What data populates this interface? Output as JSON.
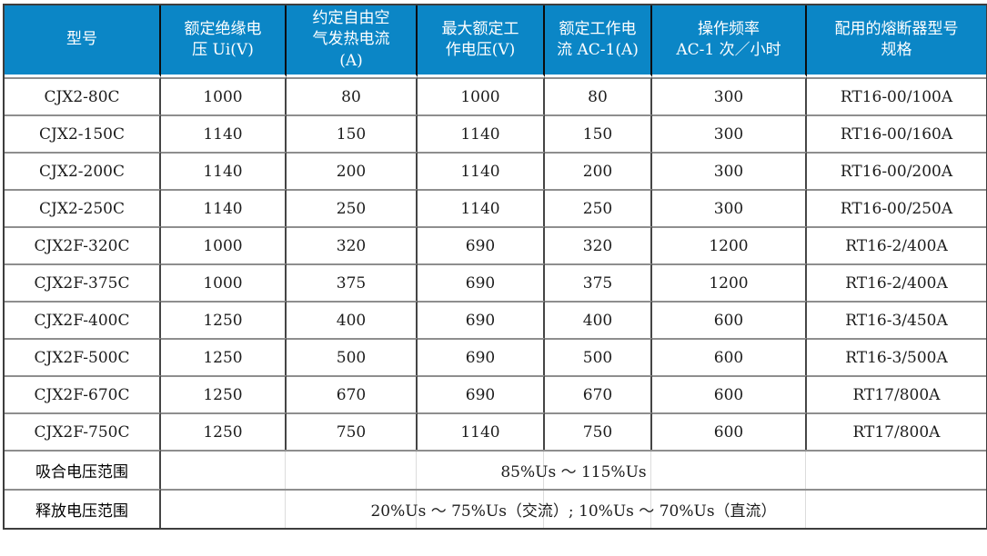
{
  "table": {
    "columns": [
      "型号",
      "额定绝缘电\n压 Ui(V)",
      "约定自由空\n气发热电流\n(A)",
      "最大额定工\n作电压(V)",
      "额定工作电\n流 AC-1(A)",
      "操作频率\nAC-1 次／小时",
      "配用的熔断器型号\n规格"
    ],
    "column_keys": [
      "model",
      "rated-insulation-voltage-ui-v",
      "conventional-free-air-thermal-current-a",
      "max-rated-working-voltage-v",
      "rated-working-current-ac1-a",
      "operating-frequency-ac1-per-hour",
      "matching-fuse-model-spec"
    ],
    "rows": [
      [
        "CJX2-80C",
        "1000",
        "80",
        "1000",
        "80",
        "300",
        "RT16-00/100A"
      ],
      [
        "CJX2-150C",
        "1140",
        "150",
        "1140",
        "150",
        "300",
        "RT16-00/160A"
      ],
      [
        "CJX2-200C",
        "1140",
        "200",
        "1140",
        "200",
        "300",
        "RT16-00/200A"
      ],
      [
        "CJX2-250C",
        "1140",
        "250",
        "1140",
        "250",
        "300",
        "RT16-00/250A"
      ],
      [
        "CJX2F-320C",
        "1000",
        "320",
        "690",
        "320",
        "1200",
        "RT16-2/400A"
      ],
      [
        "CJX2F-375C",
        "1000",
        "375",
        "690",
        "375",
        "1200",
        "RT16-2/400A"
      ],
      [
        "CJX2F-400C",
        "1250",
        "400",
        "690",
        "400",
        "600",
        "RT16-3/450A"
      ],
      [
        "CJX2F-500C",
        "1250",
        "500",
        "690",
        "500",
        "600",
        "RT16-3/500A"
      ],
      [
        "CJX2F-670C",
        "1250",
        "670",
        "690",
        "670",
        "600",
        "RT17/800A"
      ],
      [
        "CJX2F-750C",
        "1250",
        "750",
        "1140",
        "750",
        "600",
        "RT17/800A"
      ]
    ],
    "footer_rows": [
      {
        "label": "吸合电压范围",
        "value": "85%Us ～ 115%Us"
      },
      {
        "label": "释放电压范围",
        "value": "20%Us ～ 75%Us（交流）; 10%Us ～ 70%Us（直流）"
      }
    ],
    "colors": {
      "header_bg": "#0B86C6",
      "header_text": "#FFFFFF",
      "grid_dark": "#454545",
      "grid_gray": "#8E8E8E",
      "header_divider": "#0C0C0C",
      "body_text": "#1C1C1C"
    }
  }
}
